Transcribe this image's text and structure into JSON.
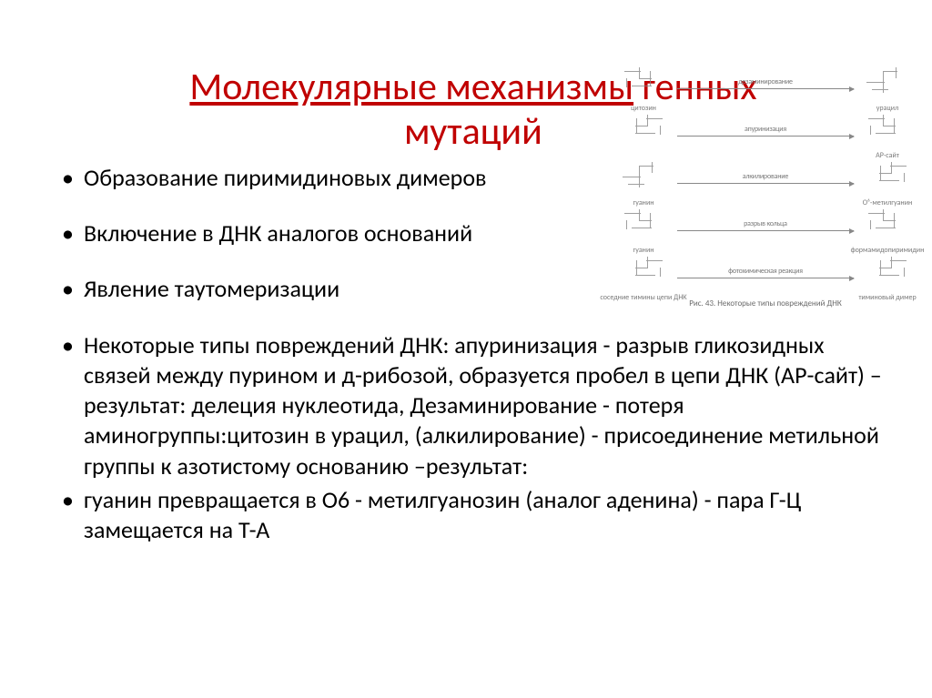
{
  "title": {
    "underlined": "Молекулярные механизмы",
    "rest": " генных\nмутаций",
    "color": "#c00000",
    "fontsize": 42
  },
  "bullets": [
    {
      "text": "Образование пиримидиновых димеров",
      "narrow": true
    },
    {
      "text": "Включение в ДНК аналогов оснований",
      "narrow": true
    },
    {
      "text": "Явление таутомеризации",
      "narrow": true
    },
    {
      "text": "Некоторые типы повреждений ДНК: апуринизация - разрыв гликозидных связей между пурином и д-рибозой, образуется пробел в цепи ДНК (АР-сайт) – результат: делеция нуклеотида, Дезаминирование  - потеря аминогруппы:цитозин в урацил, (алкилирование) - присоединение метильной группы к азотистому основанию –результат:",
      "narrow": false,
      "tight": true
    },
    {
      "text": " гуанин превращается в О6 - метилгуанозин (аналог аденина) - пара Г-Ц замещается на Т-А",
      "narrow": false
    }
  ],
  "diagram": {
    "rows": [
      {
        "left_label": "цитозин",
        "arrow_label": "дезаминирование",
        "right_label": "урацил"
      },
      {
        "left_label": "",
        "arrow_label": "апуринизация",
        "right_label": "АР-сайт"
      },
      {
        "left_label": "гуанин",
        "arrow_label": "алкилирование",
        "right_label": "O⁶-метилгуанин"
      },
      {
        "left_label": "гуанин",
        "arrow_label": "разрыв кольца",
        "right_label": "формамидопиримидин"
      },
      {
        "left_label": "соседние тимины цепи ДНК",
        "arrow_label": "фотохимическая реакция",
        "right_label": "тиминовый димер"
      }
    ],
    "caption": "Рис. 43. Некоторые типы повреждений ДНК",
    "line_color": "#888888",
    "text_color": "#7a7a7a",
    "label_fontsize": 8,
    "caption_fontsize": 9
  },
  "body_font_color": "#000000",
  "body_fontsize": 26,
  "background_color": "#ffffff"
}
